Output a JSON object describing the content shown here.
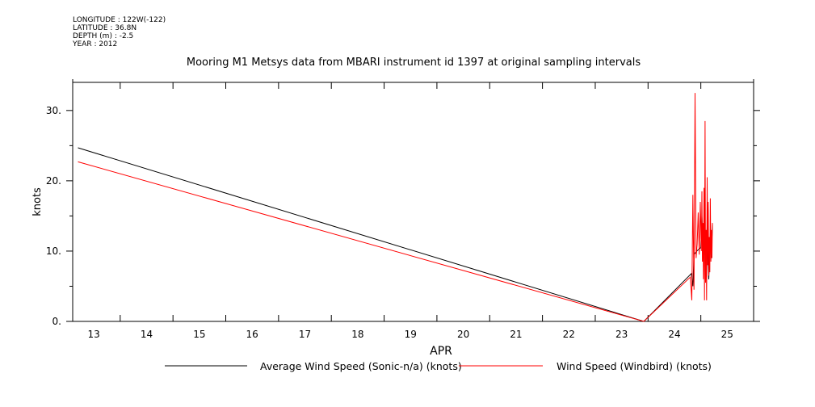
{
  "metadata": {
    "longitude": "LONGITUDE : 122W(-122)",
    "latitude": "LATITUDE : 36.8N",
    "depth": "DEPTH (m) : -2.5",
    "year": "YEAR : 2012"
  },
  "chart_data": {
    "type": "line",
    "title": "Mooring M1 Metsys data from MBARI instrument id 1397 at original sampling intervals",
    "xlabel": "APR",
    "ylabel": "knots",
    "xlim": [
      12.6,
      25.5
    ],
    "ylim": [
      0,
      34
    ],
    "x_ticks": [
      13,
      14,
      15,
      16,
      17,
      18,
      19,
      20,
      21,
      22,
      23,
      24,
      25
    ],
    "x_tick_labels": [
      "13",
      "14",
      "15",
      "16",
      "17",
      "18",
      "19",
      "20",
      "21",
      "22",
      "23",
      "24",
      "25"
    ],
    "y_ticks": [
      0,
      10,
      20,
      30
    ],
    "y_tick_labels": [
      "0.",
      "10.",
      "20.",
      "30."
    ],
    "y_minor_ticks": [
      5,
      15,
      25
    ],
    "legend": "bottom",
    "grid": false,
    "series": [
      {
        "name": "Average Wind Speed (Sonic-n/a) (knots)",
        "color": "#000000",
        "x": [
          12.7,
          23.42,
          24.32,
          24.35,
          24.37,
          24.4,
          24.45,
          24.5,
          24.52,
          24.55,
          24.57,
          24.6,
          24.62,
          24.65,
          24.68,
          24.7,
          24.72
        ],
        "y": [
          24.7,
          0.0,
          6.8,
          5.0,
          9.5,
          9.8,
          10.2,
          10.5,
          15.0,
          9.0,
          14.0,
          8.0,
          13.5,
          6.0,
          12.5,
          9.0,
          13.8
        ]
      },
      {
        "name": "Wind Speed (Windbird) (knots)",
        "color": "#ff0000",
        "x": [
          12.7,
          23.42,
          24.3,
          24.33,
          24.35,
          24.37,
          24.39,
          24.41,
          24.43,
          24.45,
          24.47,
          24.49,
          24.51,
          24.52,
          24.53,
          24.54,
          24.55,
          24.56,
          24.57,
          24.58,
          24.59,
          24.6,
          24.61,
          24.62,
          24.63,
          24.64,
          24.65,
          24.66,
          24.67,
          24.68,
          24.69,
          24.7,
          24.71,
          24.72
        ],
        "y": [
          22.7,
          0.0,
          6.3,
          3.0,
          18.0,
          4.5,
          32.5,
          9.0,
          11.0,
          15.5,
          9.5,
          17.0,
          10.0,
          18.5,
          8.5,
          14.0,
          6.0,
          19.0,
          3.0,
          28.5,
          5.5,
          13.0,
          3.0,
          20.5,
          8.0,
          17.0,
          6.5,
          12.0,
          7.0,
          17.5,
          8.5,
          13.0,
          9.0,
          14.0
        ]
      }
    ]
  }
}
